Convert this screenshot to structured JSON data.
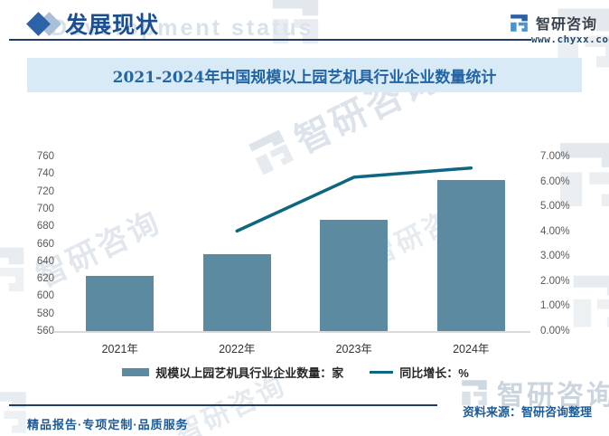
{
  "header": {
    "section_title": "发展现状",
    "brand_name": "智研咨询",
    "brand_url": "www.chyxx.com"
  },
  "watermark": {
    "brand_text": "智研咨询",
    "header_text": "Development status"
  },
  "chart_data": {
    "type": "bar",
    "combo": "bar+line",
    "title": "2021-2024年中国规模以上园艺机具行业企业数量统计",
    "categories": [
      "2021年",
      "2022年",
      "2023年",
      "2024年"
    ],
    "series": [
      {
        "name": "规模以上园艺机具行业企业数量：家",
        "type": "bar",
        "axis": "left",
        "color": "#5c8aa0",
        "values": [
          623,
          648,
          688,
          733
        ]
      },
      {
        "name": "同比增长：%",
        "type": "line",
        "axis": "right",
        "color": "#0f6680",
        "values": [
          null,
          4.01,
          6.17,
          6.54
        ]
      }
    ],
    "left_axis": {
      "min": 560,
      "max": 760,
      "step": 20,
      "ticks": [
        "560",
        "580",
        "600",
        "620",
        "640",
        "660",
        "680",
        "700",
        "720",
        "740",
        "760"
      ]
    },
    "right_axis": {
      "min": 0,
      "max": 7,
      "step": 1,
      "ticks": [
        "0.00%",
        "1.00%",
        "2.00%",
        "3.00%",
        "4.00%",
        "5.00%",
        "6.00%",
        "7.00%"
      ]
    },
    "grid": false,
    "legend_position": "bottom"
  },
  "footer": {
    "source_label": "资料来源：智研咨询整理",
    "services": "精品报告·专项定制·品质服务"
  },
  "colors": {
    "accent_dark_blue": "#1b4f92",
    "header_rule": "#1f3d66",
    "title_band_bg": "#d8eaf6",
    "title_text": "#2264a4",
    "bar_fill": "#5c8aa0",
    "line_stroke": "#0f6680",
    "axis_text": "#595959",
    "footer_text": "#1d5a96"
  }
}
